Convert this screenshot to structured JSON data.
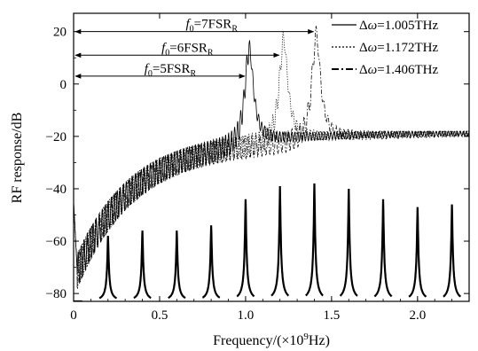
{
  "chart_data": {
    "type": "line",
    "title": "",
    "xlabel_main": "Frequency/(×10",
    "xlabel_sup": "9",
    "xlabel_tail": "Hz)",
    "ylabel": "RF response/dB",
    "xlim": [
      0,
      2.3
    ],
    "ylim": [
      -83,
      27
    ],
    "xticks": [
      0,
      0.5,
      1.0,
      1.5,
      2.0
    ],
    "xtick_labels": [
      "0",
      "0.5",
      "1.0",
      "1.5",
      "2.0"
    ],
    "yticks": [
      -80,
      -60,
      -40,
      -20,
      0,
      20
    ],
    "ytick_labels": [
      "−80",
      "−60",
      "−40",
      "−20",
      "0",
      "20"
    ],
    "grid": false,
    "legend_position": "top-right",
    "series": [
      {
        "prefix": "Δω=",
        "label_value": "1.406THz",
        "style": "dashdot",
        "color": "#000000",
        "peak_x": 1.41,
        "peak_y": 22,
        "ripple_period": 0.0233
      },
      {
        "prefix": "Δω=",
        "label_value": "1.172THz",
        "style": "dotted",
        "color": "#000000",
        "peak_x": 1.22,
        "peak_y": 20,
        "ripple_period": 0.0198
      },
      {
        "prefix": "Δω=",
        "label_value": "1.005THz",
        "style": "solid",
        "color": "#000000",
        "peak_x": 1.02,
        "peak_y": 17,
        "ripple_period": 0.0175
      }
    ],
    "comb": {
      "spacing": 0.2,
      "positions": [
        0,
        0.2,
        0.4,
        0.6,
        0.8,
        1.0,
        1.2,
        1.4,
        1.6,
        1.8,
        2.0,
        2.2
      ],
      "peak_values": [
        -83,
        -58,
        -56,
        -56,
        -54,
        -44,
        -39,
        -38,
        -40,
        -44,
        -47,
        -46
      ],
      "baseline": -83
    },
    "annotations": [
      {
        "f_sym": "f",
        "sub0": "0",
        "eq": "=7FSR",
        "subR": "R",
        "arrow_from": 0,
        "arrow_to": 1.4,
        "y": 20
      },
      {
        "f_sym": "f",
        "sub0": "0",
        "eq": "=6FSR",
        "subR": "R",
        "arrow_from": 0,
        "arrow_to": 1.2,
        "y": 11
      },
      {
        "f_sym": "f",
        "sub0": "0",
        "eq": "=5FSR",
        "subR": "R",
        "arrow_from": 0,
        "arrow_to": 1.0,
        "y": 3
      }
    ]
  }
}
